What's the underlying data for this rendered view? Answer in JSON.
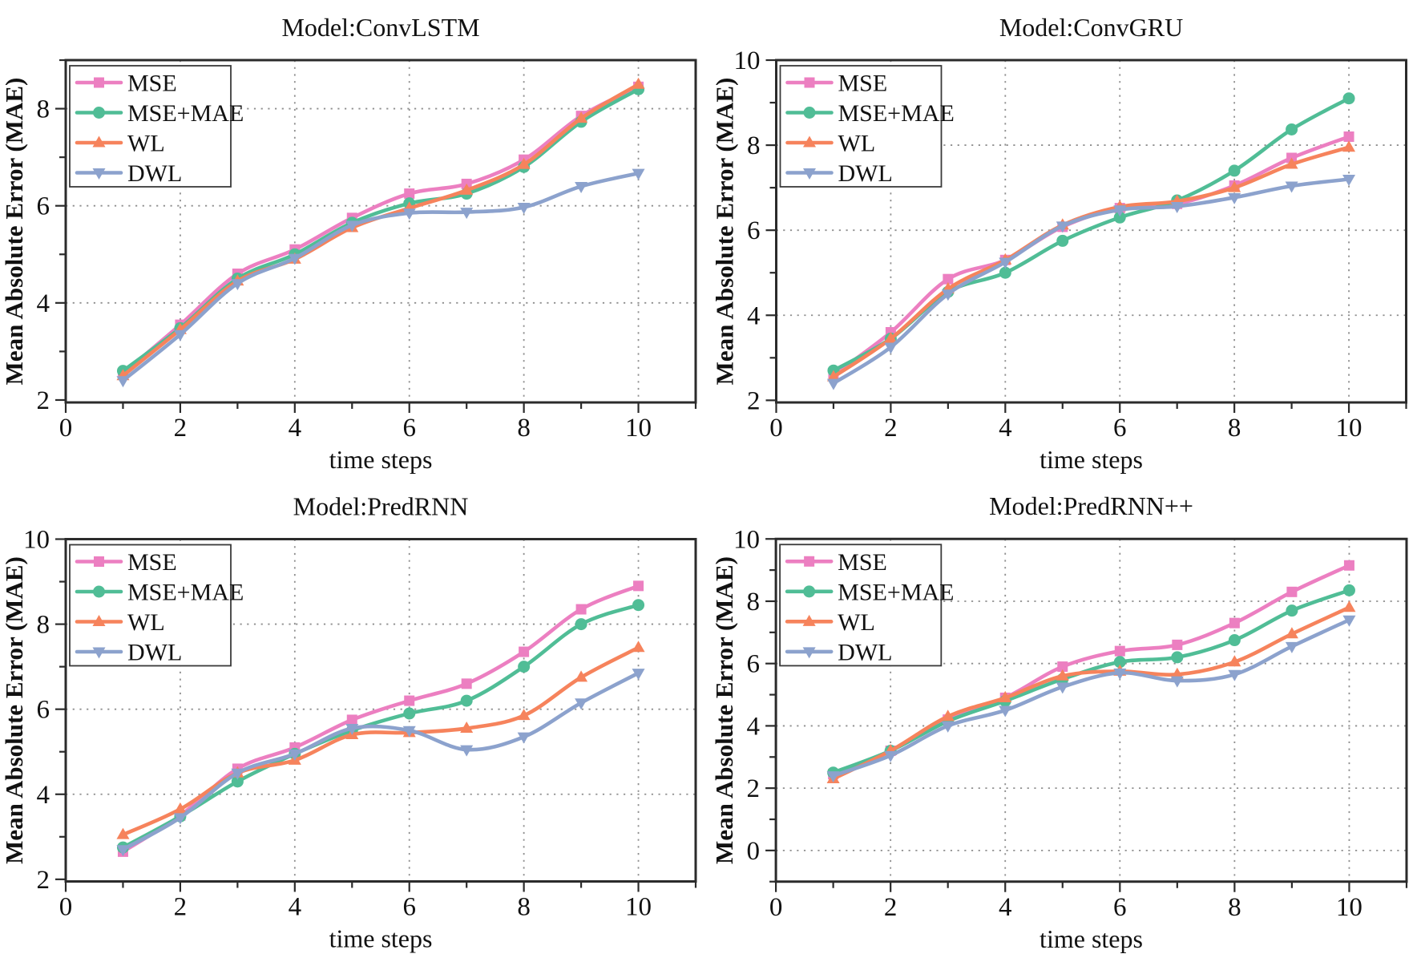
{
  "figure": {
    "background": "#ffffff",
    "axis_color": "#2b2b2b",
    "grid_color": "#8f8f8f",
    "text_color": "#111111"
  },
  "chart_data": [
    {
      "type": "line",
      "title": "Model:ConvLSTM",
      "xlabel": "time steps",
      "ylabel": "Mean Absolute Error (MAE)",
      "x": [
        1,
        2,
        3,
        4,
        5,
        6,
        7,
        8,
        9,
        10
      ],
      "xlim": [
        0,
        11
      ],
      "ylim": [
        1.95,
        9.0
      ],
      "xticks": [
        0,
        2,
        4,
        6,
        8,
        10
      ],
      "yticks": [
        2,
        4,
        6,
        8
      ],
      "minor_step": 1,
      "grid": true,
      "legend_position": "top-left",
      "series": [
        {
          "name": "MSE",
          "color": "#ec7fc1",
          "marker": "square",
          "values": [
            2.55,
            3.55,
            4.6,
            5.1,
            5.75,
            6.25,
            6.45,
            6.95,
            7.85,
            8.45
          ]
        },
        {
          "name": "MSE+MAE",
          "color": "#50bd96",
          "marker": "circle",
          "values": [
            2.6,
            3.48,
            4.5,
            5.0,
            5.65,
            6.05,
            6.25,
            6.8,
            7.73,
            8.4
          ]
        },
        {
          "name": "WL",
          "color": "#f6835c",
          "marker": "triangle-up",
          "values": [
            2.5,
            3.45,
            4.45,
            4.9,
            5.55,
            5.95,
            6.32,
            6.85,
            7.8,
            8.5
          ]
        },
        {
          "name": "DWL",
          "color": "#8ca2cd",
          "marker": "triangle-down",
          "values": [
            2.4,
            3.35,
            4.4,
            4.92,
            5.6,
            5.85,
            5.87,
            5.97,
            6.4,
            6.67
          ]
        }
      ]
    },
    {
      "type": "line",
      "title": "Model:ConvGRU",
      "xlabel": "time steps",
      "ylabel": "Mean Absolute Error (MAE)",
      "x": [
        1,
        2,
        3,
        4,
        5,
        6,
        7,
        8,
        9,
        10
      ],
      "xlim": [
        0,
        11
      ],
      "ylim": [
        1.95,
        10.0
      ],
      "xticks": [
        0,
        2,
        4,
        6,
        8,
        10
      ],
      "yticks": [
        2,
        4,
        6,
        8,
        10
      ],
      "minor_step": 1,
      "grid": true,
      "legend_position": "top-left",
      "series": [
        {
          "name": "MSE",
          "color": "#ec7fc1",
          "marker": "square",
          "values": [
            2.6,
            3.6,
            4.85,
            5.3,
            6.08,
            6.52,
            6.62,
            7.05,
            7.7,
            8.2
          ]
        },
        {
          "name": "MSE+MAE",
          "color": "#50bd96",
          "marker": "circle",
          "values": [
            2.7,
            3.45,
            4.55,
            5.0,
            5.75,
            6.3,
            6.7,
            7.4,
            8.37,
            9.1
          ]
        },
        {
          "name": "WL",
          "color": "#f6835c",
          "marker": "triangle-up",
          "values": [
            2.55,
            3.45,
            4.62,
            5.3,
            6.12,
            6.55,
            6.68,
            7.0,
            7.55,
            7.95
          ]
        },
        {
          "name": "DWL",
          "color": "#8ca2cd",
          "marker": "triangle-down",
          "values": [
            2.4,
            3.25,
            4.5,
            5.25,
            6.1,
            6.48,
            6.56,
            6.77,
            7.04,
            7.2
          ]
        }
      ]
    },
    {
      "type": "line",
      "title": "Model:PredRNN",
      "xlabel": "time steps",
      "ylabel": "Mean Absolute Error (MAE)",
      "x": [
        1,
        2,
        3,
        4,
        5,
        6,
        7,
        8,
        9,
        10
      ],
      "xlim": [
        0,
        11
      ],
      "ylim": [
        1.95,
        10.0
      ],
      "xticks": [
        0,
        2,
        4,
        6,
        8,
        10
      ],
      "yticks": [
        2,
        4,
        6,
        8,
        10
      ],
      "minor_step": 1,
      "grid": true,
      "legend_position": "top-left",
      "series": [
        {
          "name": "MSE",
          "color": "#ec7fc1",
          "marker": "square",
          "values": [
            2.65,
            3.5,
            4.6,
            5.1,
            5.75,
            6.2,
            6.6,
            7.35,
            8.35,
            8.9
          ]
        },
        {
          "name": "MSE+MAE",
          "color": "#50bd96",
          "marker": "circle",
          "values": [
            2.75,
            3.48,
            4.3,
            4.95,
            5.5,
            5.9,
            6.2,
            7.0,
            8.0,
            8.45
          ]
        },
        {
          "name": "WL",
          "color": "#f6835c",
          "marker": "triangle-up",
          "values": [
            3.05,
            3.65,
            4.5,
            4.8,
            5.4,
            5.45,
            5.55,
            5.85,
            6.75,
            7.45
          ]
        },
        {
          "name": "DWL",
          "color": "#8ca2cd",
          "marker": "triangle-down",
          "values": [
            2.7,
            3.45,
            4.5,
            4.95,
            5.55,
            5.5,
            5.05,
            5.35,
            6.15,
            6.85
          ]
        }
      ]
    },
    {
      "type": "line",
      "title": "Model:PredRNN++",
      "xlabel": "time steps",
      "ylabel": "Mean Absolute Error (MAE)",
      "x": [
        1,
        2,
        3,
        4,
        5,
        6,
        7,
        8,
        9,
        10
      ],
      "xlim": [
        0,
        11
      ],
      "ylim": [
        -1.0,
        10.0
      ],
      "xticks": [
        0,
        2,
        4,
        6,
        8,
        10
      ],
      "yticks": [
        0,
        2,
        4,
        6,
        8,
        10
      ],
      "minor_step": 1,
      "grid": true,
      "legend_position": "top-left",
      "series": [
        {
          "name": "MSE",
          "color": "#ec7fc1",
          "marker": "square",
          "values": [
            2.45,
            3.2,
            4.2,
            4.9,
            5.9,
            6.4,
            6.6,
            7.3,
            8.3,
            9.15
          ]
        },
        {
          "name": "MSE+MAE",
          "color": "#50bd96",
          "marker": "circle",
          "values": [
            2.5,
            3.2,
            4.15,
            4.8,
            5.5,
            6.05,
            6.2,
            6.75,
            7.7,
            8.35
          ]
        },
        {
          "name": "WL",
          "color": "#f6835c",
          "marker": "triangle-up",
          "values": [
            2.3,
            3.2,
            4.3,
            4.9,
            5.6,
            5.75,
            5.65,
            6.05,
            6.95,
            7.8
          ]
        },
        {
          "name": "DWL",
          "color": "#8ca2cd",
          "marker": "triangle-down",
          "values": [
            2.4,
            3.05,
            4.0,
            4.5,
            5.25,
            5.7,
            5.45,
            5.65,
            6.55,
            7.4
          ]
        }
      ]
    }
  ]
}
